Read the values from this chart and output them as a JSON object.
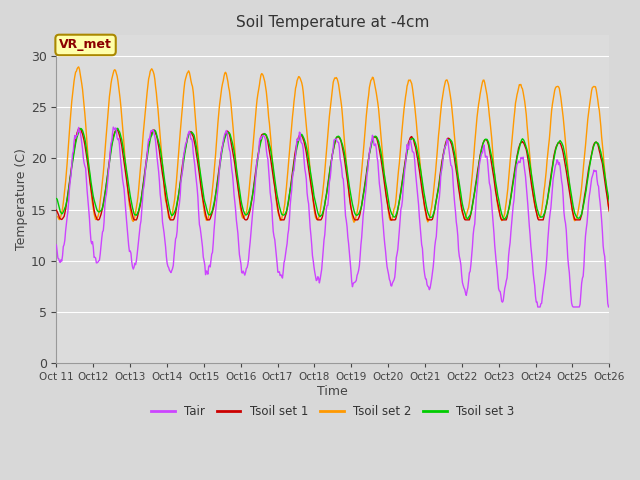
{
  "title": "Soil Temperature at -4cm",
  "xlabel": "Time",
  "ylabel": "Temperature (C)",
  "ylim": [
    0,
    32
  ],
  "yticks": [
    0,
    5,
    10,
    15,
    20,
    25,
    30
  ],
  "xtick_labels": [
    "Oct 11",
    "Oct 12",
    "Oct 13",
    "Oct 14",
    "Oct 15",
    "Oct 16",
    "Oct 17",
    "Oct 18",
    "Oct 19",
    "Oct 20",
    "Oct 21",
    "Oct 22",
    "Oct 23",
    "Oct 24",
    "Oct 25",
    "Oct 26"
  ],
  "site_label": "VR_met",
  "colors": {
    "Tair": "#cc44ff",
    "Tsoil1": "#cc0000",
    "Tsoil2": "#ff9900",
    "Tsoil3": "#00cc00"
  },
  "legend_labels": [
    "Tair",
    "Tsoil set 1",
    "Tsoil set 2",
    "Tsoil set 3"
  ],
  "plot_bg_color": "#dcdcdc",
  "fig_bg_color": "#d8d8d8"
}
